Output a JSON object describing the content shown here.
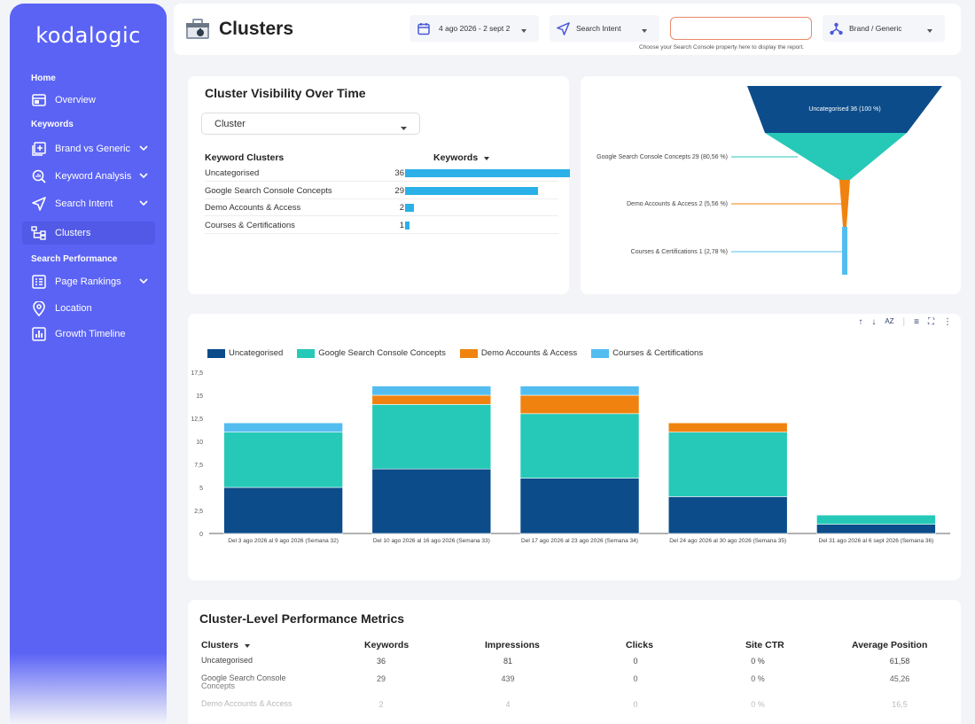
{
  "app": {
    "logo": "kodalogic"
  },
  "sidebar": {
    "sections": [
      "Home",
      "Keywords",
      "Search Performance"
    ],
    "items": [
      {
        "label": "Overview"
      },
      {
        "label": "Brand vs Generic"
      },
      {
        "label": "Keyword Analysis"
      },
      {
        "label": "Search Intent"
      },
      {
        "label": "Clusters"
      },
      {
        "label": "Page Rankings"
      },
      {
        "label": "Location"
      },
      {
        "label": "Growth Timeline"
      }
    ]
  },
  "header": {
    "title": "Clusters",
    "date_range": "4 ago 2026 - 2 sept 2",
    "search_intent": "Search Intent",
    "property_value": "",
    "brand_filter": "Brand / Generic",
    "hint": "Choose your Search Console property here to display the report."
  },
  "visibility": {
    "title": "Cluster Visibility Over Time",
    "dropdown": "Cluster",
    "col1": "Keyword Clusters",
    "col2": "Keywords",
    "rows": [
      {
        "name": "Uncategorised",
        "value": 36
      },
      {
        "name": "Google Search Console Concepts",
        "value": 29
      },
      {
        "name": "Demo Accounts & Access",
        "value": 2
      },
      {
        "name": "Courses & Certifications",
        "value": 1
      }
    ]
  },
  "funnel": {
    "labels": [
      "Uncategorised 36 (100 %)",
      "Google Search Console Concepts 29 (80,56 %)",
      "Demo Accounts & Access 2 (5,56 %)",
      "Courses & Certifications 1 (2,78 %)"
    ]
  },
  "colors": {
    "uncat": "#0c4c8a",
    "gsc": "#26c9b8",
    "demo": "#f0830f",
    "courses": "#53bdf0",
    "accent": "#5b63f5"
  },
  "chart_data": {
    "type": "bar",
    "stacked": true,
    "categories": [
      "Del 3 ago 2026 al 9 ago 2026 (Semana 32)",
      "Del 10 ago 2026 al 16 ago 2026 (Semana 33)",
      "Del 17 ago 2026 al 23 ago 2026 (Semana 34)",
      "Del 24 ago 2026 al 30 ago 2026 (Semana 35)",
      "Del 31 ago 2026 al 6 sept 2026 (Semana 36)"
    ],
    "series": [
      {
        "name": "Uncategorised",
        "values": [
          5,
          7,
          6,
          4,
          1
        ]
      },
      {
        "name": "Google Search Console Concepts",
        "values": [
          6,
          7,
          7,
          7,
          1
        ]
      },
      {
        "name": "Demo Accounts & Access",
        "values": [
          0,
          1,
          2,
          1,
          0
        ]
      },
      {
        "name": "Courses & Certifications",
        "values": [
          1,
          1,
          1,
          0,
          0
        ]
      }
    ],
    "ylim": [
      0,
      17.5
    ],
    "yticks": [
      "0",
      "2,5",
      "5",
      "7,5",
      "10",
      "12,5",
      "15",
      "17,5"
    ],
    "legend": "top-left"
  },
  "metrics": {
    "title": "Cluster-Level Performance Metrics",
    "headers": [
      "Clusters",
      "Keywords",
      "Impressions",
      "Clicks",
      "Site CTR",
      "Average Position"
    ],
    "rows": [
      [
        "Uncategorised",
        "36",
        "81",
        "0",
        "0 %",
        "61,58"
      ],
      [
        "Google Search Console Concepts",
        "29",
        "439",
        "0",
        "0 %",
        "45,26"
      ],
      [
        "Demo Accounts & Access",
        "2",
        "4",
        "0",
        "0 %",
        "16,5"
      ]
    ]
  }
}
